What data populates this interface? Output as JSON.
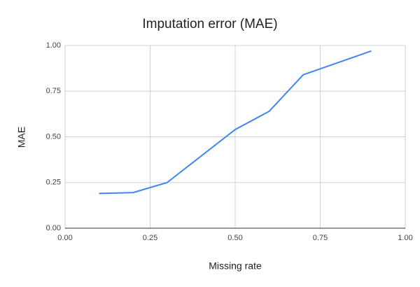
{
  "chart_data": {
    "type": "line",
    "title": "Imputation error (MAE)",
    "x_label": "Missing rate",
    "y_label": "MAE",
    "x": [
      0.1,
      0.2,
      0.3,
      0.5,
      0.6,
      0.7,
      0.9
    ],
    "series": [
      {
        "name": "MAE",
        "color": "#4285f4",
        "values": [
          0.19,
          0.195,
          0.25,
          0.54,
          0.64,
          0.84,
          0.97
        ]
      }
    ],
    "xlim": [
      0,
      1
    ],
    "ylim": [
      0,
      1
    ],
    "xticks": [
      {
        "value": 0,
        "label": "0.00"
      },
      {
        "value": 0.25,
        "label": "0.25"
      },
      {
        "value": 0.5,
        "label": "0.50"
      },
      {
        "value": 0.75,
        "label": "0.75"
      },
      {
        "value": 1,
        "label": "1.00"
      }
    ],
    "yticks": [
      {
        "value": 0,
        "label": "0.00"
      },
      {
        "value": 0.25,
        "label": "0.25"
      },
      {
        "value": 0.5,
        "label": "0.50"
      },
      {
        "value": 0.75,
        "label": "0.75"
      },
      {
        "value": 1,
        "label": "1.00"
      }
    ],
    "grid": true
  }
}
